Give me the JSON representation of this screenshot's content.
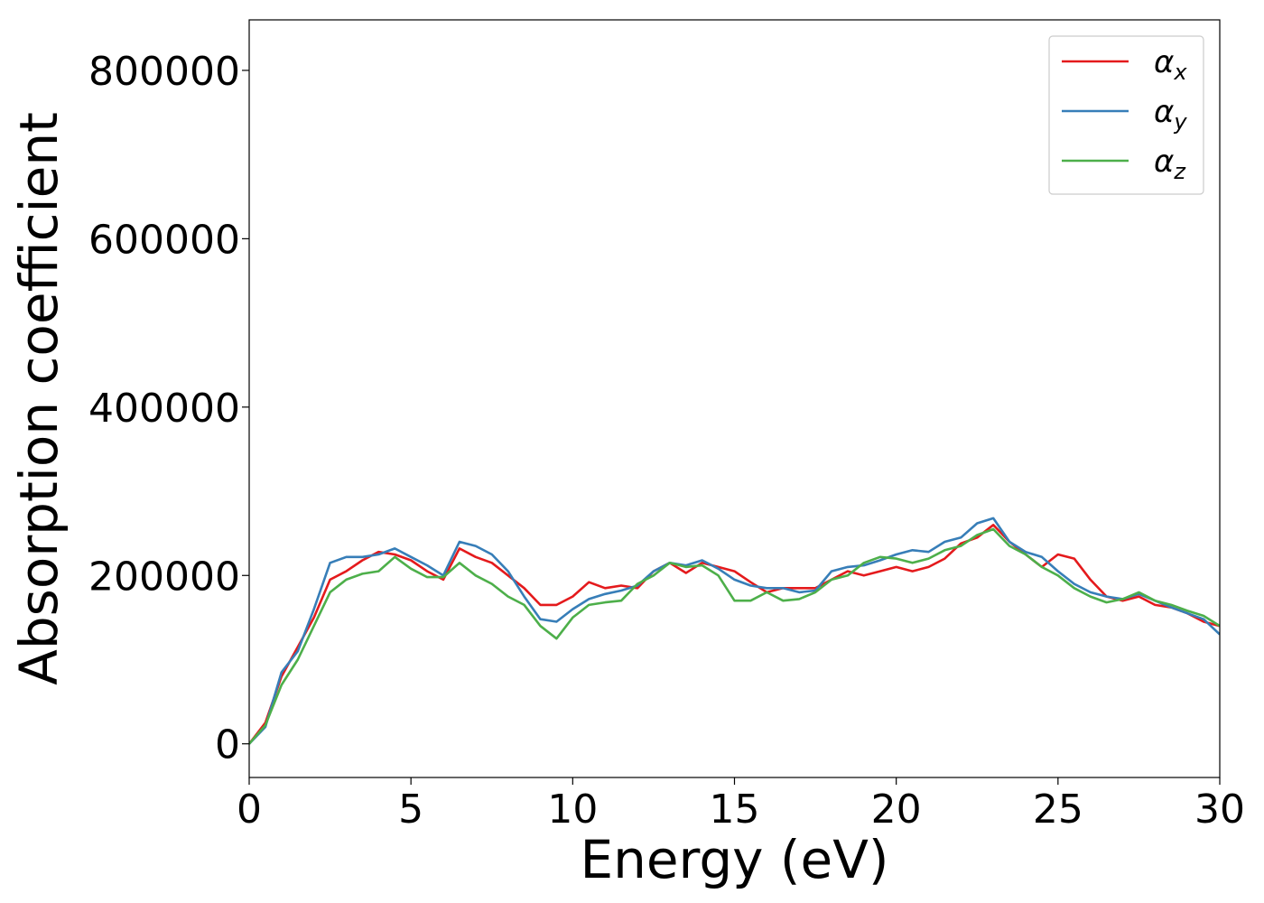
{
  "chart_data": {
    "type": "line",
    "xlabel": "Energy (eV)",
    "ylabel": "Absorption coefficient",
    "xlim": [
      0,
      30
    ],
    "ylim": [
      -40000,
      860000
    ],
    "xticks": [
      0,
      5,
      10,
      15,
      20,
      25,
      30
    ],
    "yticks": [
      0,
      200000,
      400000,
      600000,
      800000
    ],
    "xtick_labels": [
      "0",
      "5",
      "10",
      "15",
      "20",
      "25",
      "30"
    ],
    "ytick_labels": [
      "0",
      "200000",
      "400000",
      "600000",
      "800000"
    ],
    "grid": false,
    "legend_position": "top-right",
    "x": [
      0,
      0.5,
      1,
      1.5,
      2,
      2.5,
      3,
      3.5,
      4,
      4.5,
      5,
      5.5,
      6,
      6.5,
      7,
      7.5,
      8,
      8.5,
      9,
      9.5,
      10,
      10.5,
      11,
      11.5,
      12,
      12.5,
      13,
      13.5,
      14,
      14.5,
      15,
      15.5,
      16,
      16.5,
      17,
      17.5,
      18,
      18.5,
      19,
      19.5,
      20,
      20.5,
      21,
      21.5,
      22,
      22.5,
      23,
      23.5,
      24,
      24.5,
      25,
      25.5,
      26,
      26.5,
      27,
      27.5,
      28,
      28.5,
      29,
      29.5,
      30
    ],
    "series": [
      {
        "name": "α",
        "subscript": "x",
        "color": "#e41a1c",
        "values": [
          0,
          25000,
          80000,
          115000,
          150000,
          195000,
          205000,
          218000,
          228000,
          225000,
          218000,
          205000,
          195000,
          232000,
          222000,
          215000,
          200000,
          185000,
          165000,
          165000,
          175000,
          192000,
          185000,
          188000,
          185000,
          205000,
          215000,
          203000,
          215000,
          210000,
          205000,
          192000,
          180000,
          185000,
          185000,
          185000,
          195000,
          205000,
          200000,
          205000,
          210000,
          205000,
          210000,
          220000,
          238000,
          245000,
          260000,
          240000,
          225000,
          210000,
          225000,
          220000,
          195000,
          175000,
          170000,
          175000,
          165000,
          162000,
          155000,
          145000,
          140000
        ]
      },
      {
        "name": "α",
        "subscript": "y",
        "color": "#377eb8",
        "values": [
          0,
          20000,
          85000,
          110000,
          160000,
          215000,
          222000,
          222000,
          225000,
          232000,
          222000,
          212000,
          200000,
          240000,
          235000,
          225000,
          205000,
          175000,
          148000,
          145000,
          160000,
          172000,
          178000,
          182000,
          188000,
          205000,
          215000,
          212000,
          218000,
          208000,
          195000,
          188000,
          185000,
          185000,
          180000,
          182000,
          205000,
          210000,
          212000,
          218000,
          225000,
          230000,
          228000,
          240000,
          245000,
          262000,
          268000,
          240000,
          228000,
          222000,
          205000,
          190000,
          180000,
          175000,
          172000,
          178000,
          170000,
          162000,
          155000,
          148000,
          130000
        ]
      },
      {
        "name": "α",
        "subscript": "z",
        "color": "#4daf4a",
        "values": [
          0,
          22000,
          70000,
          100000,
          140000,
          180000,
          195000,
          202000,
          205000,
          222000,
          208000,
          198000,
          198000,
          215000,
          200000,
          190000,
          175000,
          165000,
          140000,
          125000,
          150000,
          165000,
          168000,
          170000,
          190000,
          200000,
          215000,
          210000,
          212000,
          200000,
          170000,
          170000,
          180000,
          170000,
          172000,
          180000,
          195000,
          200000,
          215000,
          222000,
          220000,
          215000,
          220000,
          230000,
          235000,
          248000,
          255000,
          235000,
          225000,
          210000,
          200000,
          185000,
          175000,
          168000,
          172000,
          180000,
          170000,
          165000,
          158000,
          152000,
          140000
        ]
      }
    ]
  }
}
